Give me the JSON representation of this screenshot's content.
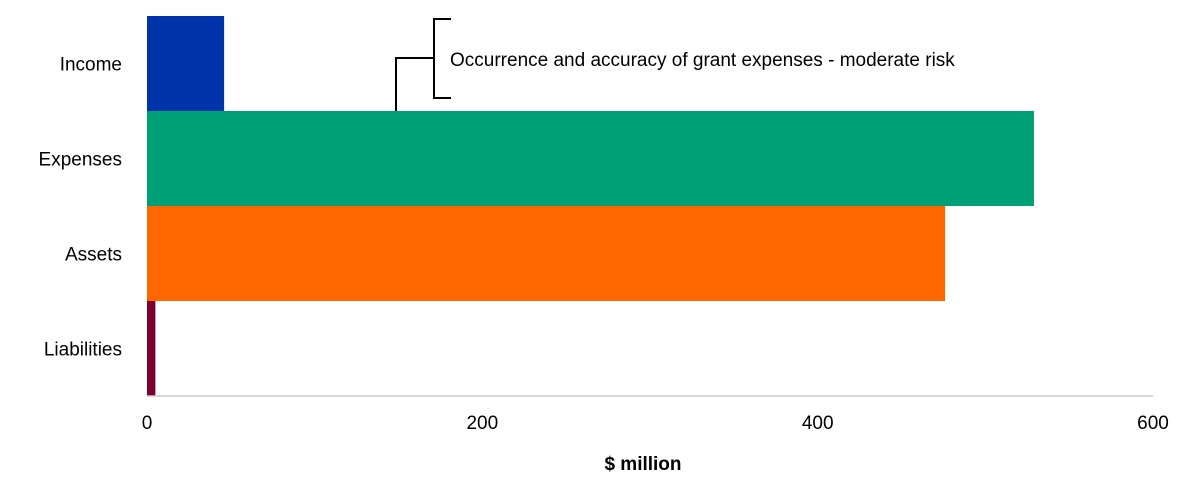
{
  "chart_data": {
    "type": "bar",
    "orientation": "horizontal",
    "title": "",
    "xlabel": "$ million",
    "ylabel": "",
    "xlim": [
      0,
      600
    ],
    "xticks": [
      0,
      200,
      400,
      600
    ],
    "grid": false,
    "legend": "none",
    "categories": [
      "Income",
      "Expenses",
      "Assets",
      "Liabilities"
    ],
    "values": [
      46,
      529,
      476,
      5
    ],
    "colors": [
      "#0033aa",
      "#00a076",
      "#ff6600",
      "#7a0032"
    ],
    "annotations": [
      {
        "category": "Expenses",
        "text": "Occurrence and accuracy of grant expenses - moderate risk"
      }
    ]
  }
}
